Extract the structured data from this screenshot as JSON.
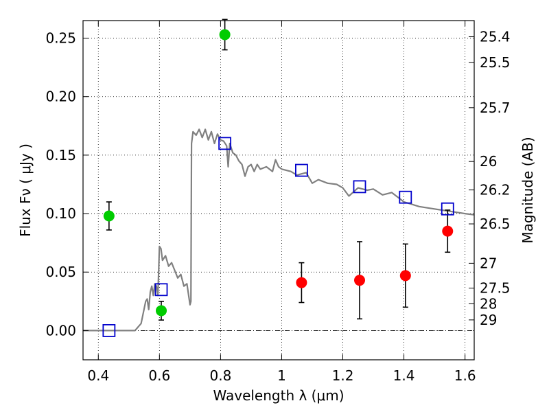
{
  "chart_data": {
    "type": "scatter",
    "xlabel": "Wavelength  λ (μm)",
    "ylabel": "Flux  Fν  ( μJy )",
    "y2label": "Magnitude (AB)",
    "xlim": [
      0.35,
      1.63
    ],
    "ylim": [
      -0.025,
      0.265
    ],
    "x_ticks": [
      0.4,
      0.6,
      0.8,
      1.0,
      1.2,
      1.4,
      1.6
    ],
    "x_tick_labels": [
      "0.4",
      "0.6",
      "0.8",
      "1",
      "1.2",
      "1.4",
      "1.6"
    ],
    "y_ticks": [
      0.0,
      0.05,
      0.1,
      0.15,
      0.2,
      0.25
    ],
    "y_tick_labels": [
      "0.00",
      "0.05",
      "0.10",
      "0.15",
      "0.20",
      "0.25"
    ],
    "y2_ticks": [
      {
        "label": "25.4",
        "mag": 25.4
      },
      {
        "label": "25.5",
        "mag": 25.5
      },
      {
        "label": "25.7",
        "mag": 25.7
      },
      {
        "label": "26",
        "mag": 26.0
      },
      {
        "label": "26.2",
        "mag": 26.2
      },
      {
        "label": "26.5",
        "mag": 26.5
      },
      {
        "label": "27",
        "mag": 27.0
      },
      {
        "label": "27.5",
        "mag": 27.5
      },
      {
        "label": "28",
        "mag": 28.0
      },
      {
        "label": "29",
        "mag": 29.0
      }
    ],
    "grid": true,
    "zero_line": true,
    "series": [
      {
        "marker": "circle",
        "color": "#00cc00",
        "points": [
          {
            "x": 0.435,
            "y": 0.098,
            "err": 0.012
          },
          {
            "x": 0.606,
            "y": 0.017,
            "err": 0.008
          },
          {
            "x": 0.814,
            "y": 0.253,
            "err": 0.013
          }
        ]
      },
      {
        "marker": "circle",
        "color": "#ff0000",
        "points": [
          {
            "x": 1.065,
            "y": 0.041,
            "err": 0.017
          },
          {
            "x": 1.255,
            "y": 0.043,
            "err": 0.033
          },
          {
            "x": 1.405,
            "y": 0.047,
            "err": 0.027
          },
          {
            "x": 1.543,
            "y": 0.085,
            "err": 0.018
          }
        ]
      },
      {
        "marker": "open-square",
        "color": "#0000cc",
        "points": [
          {
            "x": 0.435,
            "y": 0.0
          },
          {
            "x": 0.606,
            "y": 0.035
          },
          {
            "x": 0.814,
            "y": 0.16
          },
          {
            "x": 1.065,
            "y": 0.137
          },
          {
            "x": 1.255,
            "y": 0.123
          },
          {
            "x": 1.405,
            "y": 0.114
          },
          {
            "x": 1.543,
            "y": 0.104
          }
        ]
      },
      {
        "type": "line",
        "color": "#808080",
        "x": [
          0.35,
          0.52,
          0.54,
          0.555,
          0.56,
          0.565,
          0.57,
          0.575,
          0.58,
          0.585,
          0.59,
          0.595,
          0.6,
          0.605,
          0.61,
          0.62,
          0.63,
          0.64,
          0.66,
          0.67,
          0.68,
          0.69,
          0.7,
          0.703,
          0.705,
          0.71,
          0.72,
          0.73,
          0.74,
          0.75,
          0.76,
          0.77,
          0.78,
          0.79,
          0.8,
          0.81,
          0.82,
          0.825,
          0.83,
          0.84,
          0.85,
          0.86,
          0.87,
          0.88,
          0.89,
          0.9,
          0.91,
          0.92,
          0.93,
          0.95,
          0.97,
          0.98,
          0.99,
          1.0,
          1.03,
          1.05,
          1.08,
          1.1,
          1.12,
          1.15,
          1.18,
          1.2,
          1.22,
          1.25,
          1.28,
          1.3,
          1.33,
          1.36,
          1.4,
          1.45,
          1.5,
          1.55,
          1.6,
          1.63
        ],
        "y": [
          0.0,
          0.0,
          0.006,
          0.025,
          0.027,
          0.018,
          0.033,
          0.038,
          0.03,
          0.04,
          0.038,
          0.03,
          0.072,
          0.07,
          0.06,
          0.064,
          0.055,
          0.058,
          0.045,
          0.048,
          0.038,
          0.04,
          0.022,
          0.025,
          0.16,
          0.17,
          0.167,
          0.172,
          0.165,
          0.172,
          0.163,
          0.17,
          0.16,
          0.168,
          0.163,
          0.162,
          0.158,
          0.14,
          0.16,
          0.152,
          0.15,
          0.145,
          0.142,
          0.132,
          0.14,
          0.142,
          0.136,
          0.142,
          0.138,
          0.14,
          0.136,
          0.146,
          0.14,
          0.138,
          0.136,
          0.133,
          0.135,
          0.126,
          0.129,
          0.126,
          0.125,
          0.122,
          0.115,
          0.122,
          0.12,
          0.121,
          0.116,
          0.118,
          0.11,
          0.106,
          0.104,
          0.102,
          0.1,
          0.099
        ]
      }
    ]
  }
}
